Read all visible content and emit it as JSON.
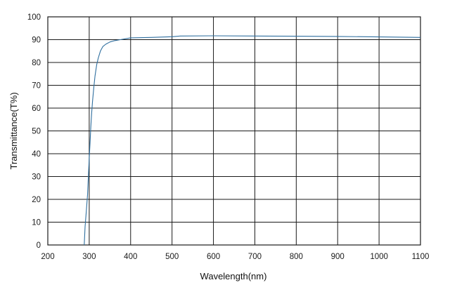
{
  "chart_data": {
    "type": "line",
    "title": "",
    "xlabel": "Wavelength(nm)",
    "ylabel": "Transmittance(T%)",
    "xlim": [
      200,
      1100
    ],
    "ylim": [
      0,
      100
    ],
    "x_ticks": [
      200,
      300,
      400,
      500,
      600,
      700,
      800,
      900,
      1000,
      1100
    ],
    "y_ticks": [
      0,
      10,
      20,
      30,
      40,
      50,
      60,
      70,
      80,
      90,
      100
    ],
    "grid": true,
    "legend": "none",
    "series": [
      {
        "color": "#2f6f9f",
        "x": [
          288,
          290,
          293,
          296,
          298,
          300,
          302,
          304,
          306,
          308,
          311,
          314,
          318,
          322,
          327,
          333,
          340,
          350,
          360,
          375,
          390,
          400,
          450,
          500,
          520,
          600,
          700,
          800,
          900,
          1000,
          1100
        ],
        "y": [
          0,
          8,
          15,
          22,
          30,
          38,
          45,
          52,
          58,
          63,
          69,
          74,
          79,
          82,
          85,
          87,
          88,
          89,
          89.5,
          90,
          90.5,
          90.8,
          91,
          91.3,
          91.6,
          91.7,
          91.6,
          91.5,
          91.4,
          91.2,
          91
        ]
      }
    ]
  }
}
